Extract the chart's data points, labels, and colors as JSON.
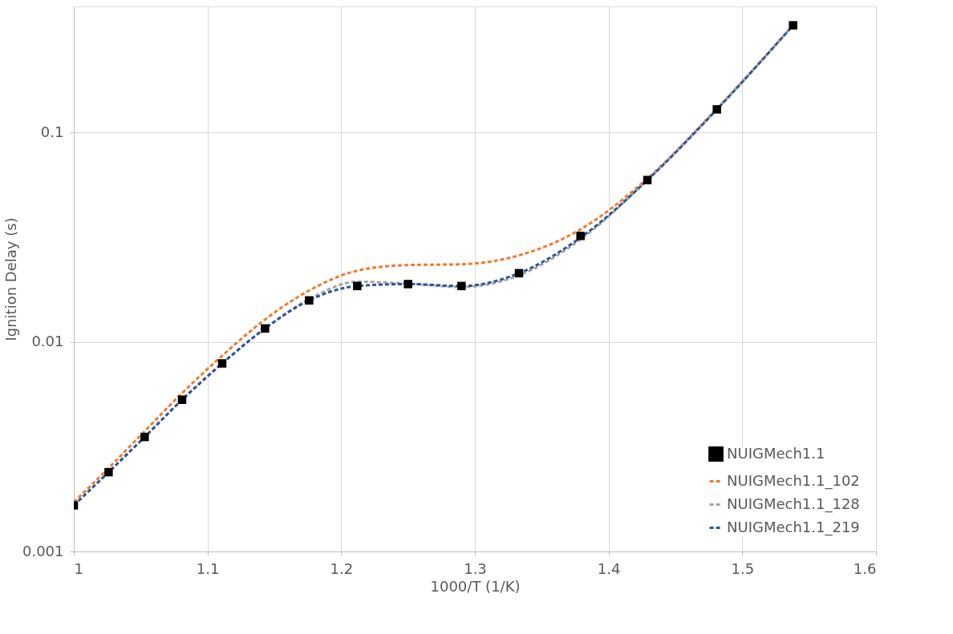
{
  "chart_data": {
    "type": "line",
    "xlabel": "1000/T (1/K)",
    "ylabel": "Ignition Delay (s)",
    "x": [
      1,
      1.026,
      1.053,
      1.081,
      1.111,
      1.143,
      1.176,
      1.212,
      1.25,
      1.29,
      1.333,
      1.379,
      1.429,
      1.481,
      1.538
    ],
    "series": [
      {
        "name": "NUIGMech1.1",
        "type": "scatter",
        "marker": "square",
        "color": "#000000",
        "values": [
          0.00166,
          0.00239,
          0.00352,
          0.0053,
          0.0079,
          0.0116,
          0.0158,
          0.0185,
          0.0189,
          0.0185,
          0.0213,
          0.0321,
          0.0593,
          0.129,
          0.325
        ]
      },
      {
        "name": "NUIGMech1.1_102",
        "type": "line",
        "line_style": "dashed",
        "color": "#ed7d31",
        "values": [
          0.00172,
          0.0025,
          0.00375,
          0.0057,
          0.0086,
          0.0128,
          0.0176,
          0.0219,
          0.0233,
          0.0235,
          0.0259,
          0.0345,
          0.0603,
          0.13,
          0.325
        ]
      },
      {
        "name": "NUIGMech1.1_128",
        "type": "line",
        "line_style": "dashed",
        "color": "#a5a5a5",
        "values": [
          0.00166,
          0.00239,
          0.00352,
          0.0053,
          0.0079,
          0.0116,
          0.016,
          0.0194,
          0.019,
          0.0183,
          0.0208,
          0.0309,
          0.0593,
          0.129,
          0.325
        ]
      },
      {
        "name": "NUIGMech1.1_219",
        "type": "line",
        "line_style": "dashed",
        "color": "#2f5597",
        "values": [
          0.00166,
          0.00239,
          0.00352,
          0.0053,
          0.0079,
          0.0116,
          0.0158,
          0.0185,
          0.0189,
          0.0185,
          0.0213,
          0.0315,
          0.0593,
          0.129,
          0.325
        ]
      }
    ],
    "xlim": [
      1,
      1.6
    ],
    "xticks": [
      1,
      1.1,
      1.2,
      1.3,
      1.4,
      1.5,
      1.6
    ],
    "ylim": [
      0.001,
      0.4
    ],
    "yticks": [
      0.001,
      0.01,
      0.1
    ],
    "log": "y",
    "grid": true,
    "legend": "bottom right"
  }
}
